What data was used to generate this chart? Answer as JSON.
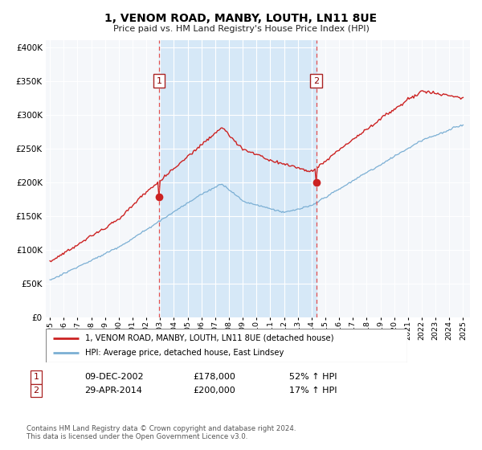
{
  "title": "1, VENOM ROAD, MANBY, LOUTH, LN11 8UE",
  "subtitle": "Price paid vs. HM Land Registry's House Price Index (HPI)",
  "legend_line1": "1, VENOM ROAD, MANBY, LOUTH, LN11 8UE (detached house)",
  "legend_line2": "HPI: Average price, detached house, East Lindsey",
  "footnote1": "Contains HM Land Registry data © Crown copyright and database right 2024.",
  "footnote2": "This data is licensed under the Open Government Licence v3.0.",
  "transaction1": {
    "label": "1",
    "date": "09-DEC-2002",
    "price": "£178,000",
    "pct": "52% ↑ HPI"
  },
  "transaction2": {
    "label": "2",
    "date": "29-APR-2014",
    "price": "£200,000",
    "pct": "17% ↑ HPI"
  },
  "sale_date1_year": 2002.92,
  "sale_date2_year": 2014.33,
  "sale_price1": 178000,
  "sale_price2": 200000,
  "hpi_color": "#7bafd4",
  "property_color": "#cc2222",
  "span_color": "#d6e8f7",
  "plot_bg": "#f5f7fa",
  "grid_color": "#ffffff",
  "yticks": [
    0,
    50000,
    100000,
    150000,
    200000,
    250000,
    300000,
    350000,
    400000
  ],
  "ylim_max": 410000,
  "xlim_min": 1994.7,
  "xlim_max": 2025.5
}
